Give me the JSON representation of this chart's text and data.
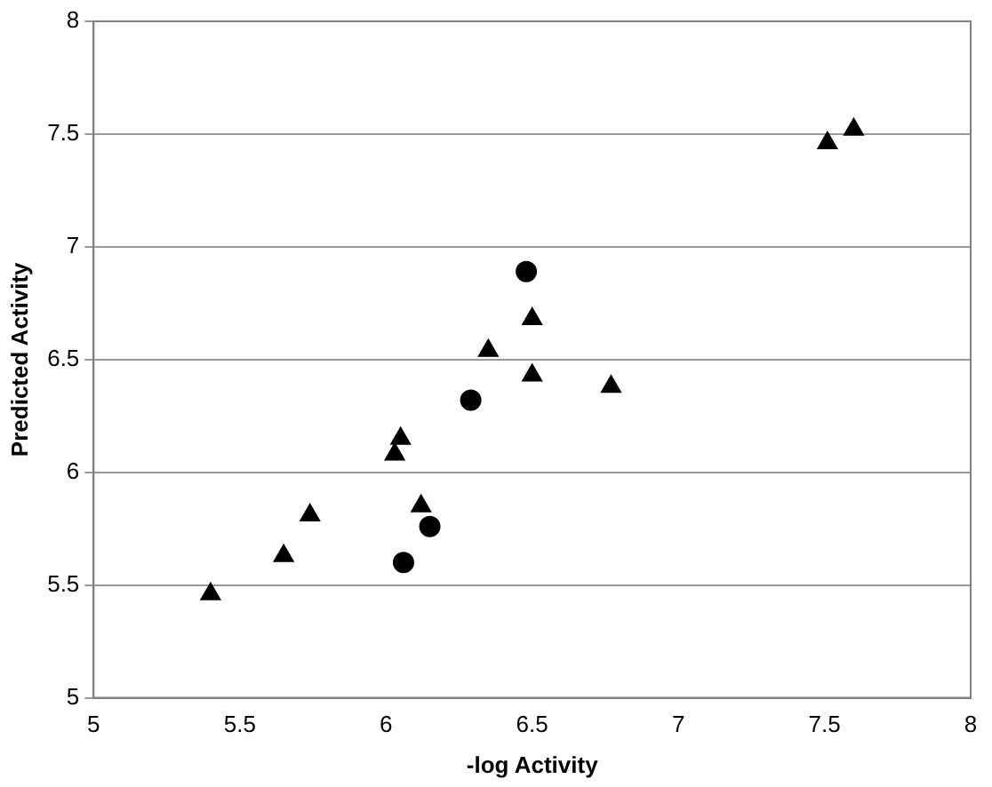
{
  "chart_data": {
    "type": "scatter",
    "xlabel": "-log Activity",
    "ylabel": "Predicted Activity",
    "xlim": [
      5,
      8
    ],
    "xticks": [
      5,
      5.5,
      6,
      6.5,
      7,
      7.5,
      8
    ],
    "ylim": [
      5,
      8
    ],
    "yticks": [
      5,
      5.5,
      6,
      6.5,
      7,
      7.5,
      8
    ],
    "grid": "y",
    "legend": false,
    "series": [
      {
        "color": "#000000",
        "marker": "triangle",
        "x": [
          5.4,
          5.65,
          5.74,
          6.12,
          6.5,
          6.35,
          6.5,
          6.77,
          6.05,
          6.03,
          7.51,
          7.6
        ],
        "values": [
          5.46,
          5.63,
          5.81,
          5.85,
          6.68,
          6.54,
          6.43,
          6.38,
          6.15,
          6.08,
          7.46,
          7.52
        ]
      },
      {
        "color": "#000000",
        "marker": "circle",
        "x": [
          6.06,
          6.15,
          6.48,
          6.29
        ],
        "values": [
          5.6,
          5.76,
          6.89,
          6.32
        ]
      }
    ]
  }
}
